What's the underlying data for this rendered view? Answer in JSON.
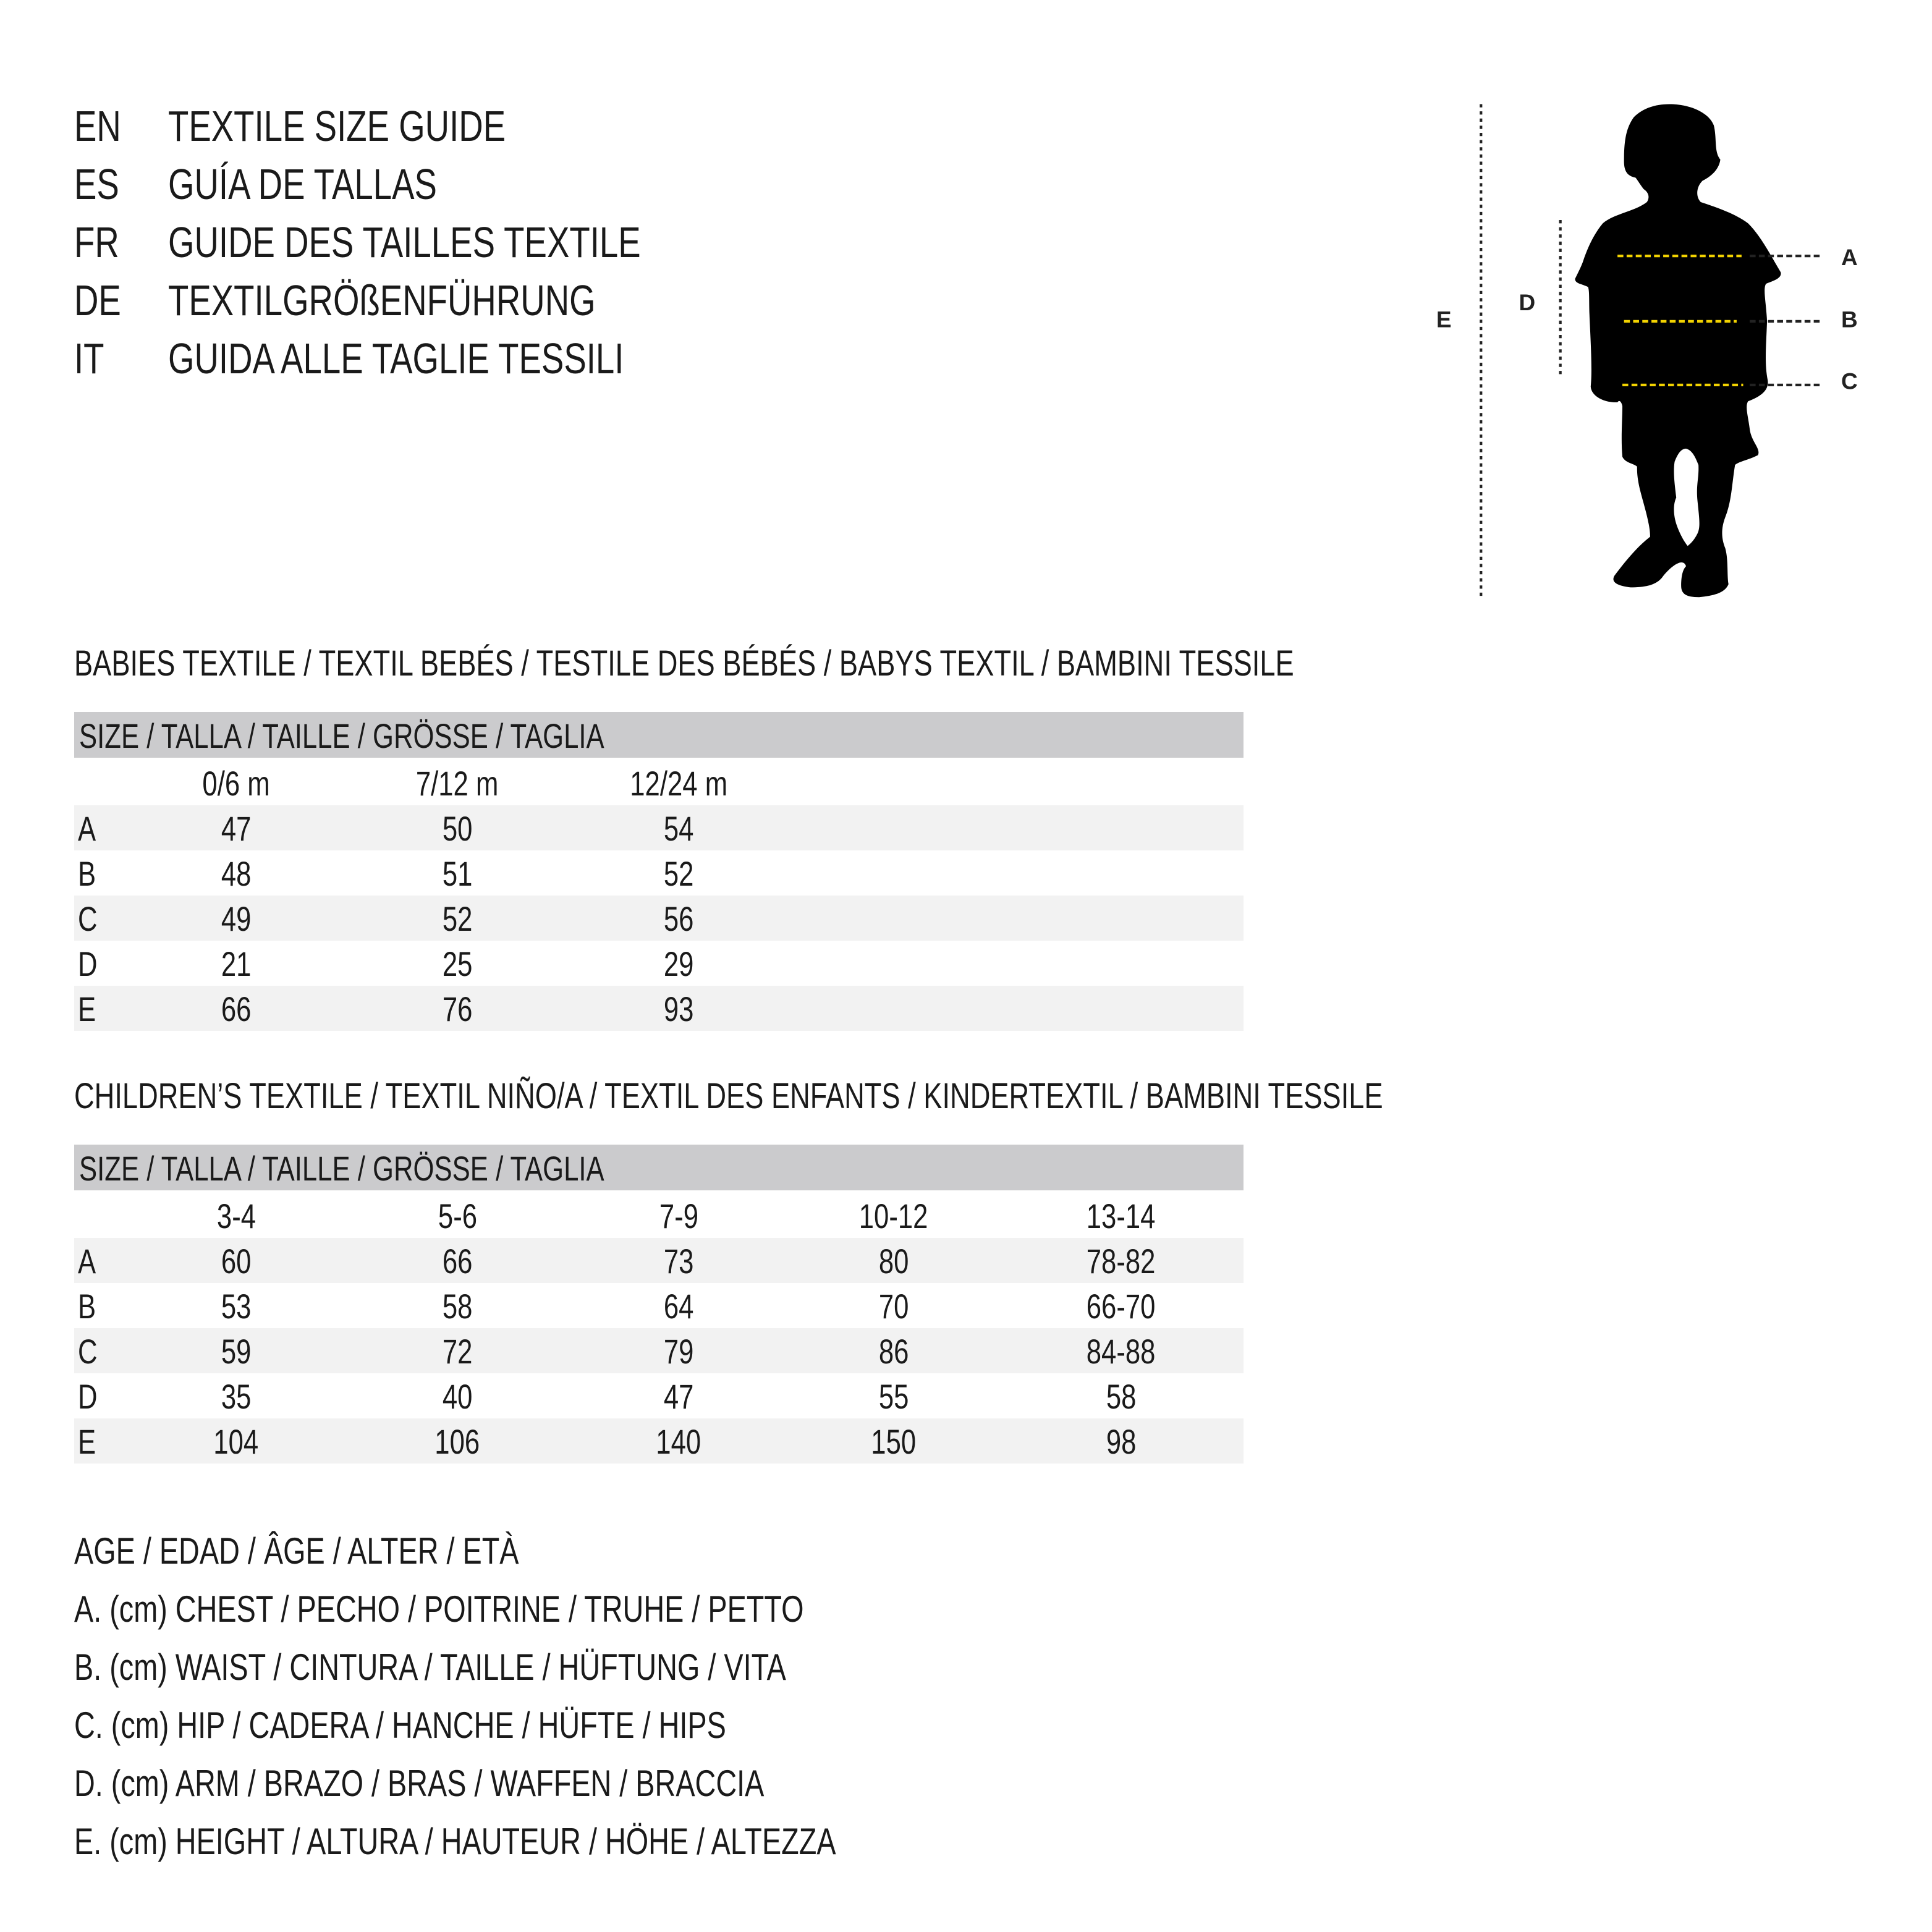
{
  "header": [
    {
      "code": "EN",
      "title": "TEXTILE SIZE GUIDE"
    },
    {
      "code": "ES",
      "title": "GUÍA DE TALLAS"
    },
    {
      "code": "FR",
      "title": "GUIDE DES TAILLES TEXTILE"
    },
    {
      "code": "DE",
      "title": "TEXTILGRÖßENFÜHRUNG"
    },
    {
      "code": "IT",
      "title": "GUIDA ALLE TAGLIE TESSILI"
    }
  ],
  "figure": {
    "labels": {
      "A": "A",
      "B": "B",
      "C": "C",
      "D": "D",
      "E": "E"
    },
    "colors": {
      "silhouette": "#000000",
      "measure_line": "#f2d200",
      "guide_line": "#222222"
    }
  },
  "babies": {
    "title": "BABIES TEXTILE / TEXTIL BEBÉS / TESTILE DES BÉBÉS / BABYS TEXTIL / BAMBINI TESSILE",
    "size_header": "SIZE / TALLA / TAILLE / GRÖSSE / TAGLIA",
    "columns": [
      "0/6 m",
      "7/12 m",
      "12/24 m"
    ],
    "rows": [
      {
        "label": "A",
        "values": [
          "47",
          "50",
          "54"
        ]
      },
      {
        "label": "B",
        "values": [
          "48",
          "51",
          "52"
        ]
      },
      {
        "label": "C",
        "values": [
          "49",
          "52",
          "56"
        ]
      },
      {
        "label": "D",
        "values": [
          "21",
          "25",
          "29"
        ]
      },
      {
        "label": "E",
        "values": [
          "66",
          "76",
          "93"
        ]
      }
    ]
  },
  "children": {
    "title": "CHILDREN’S TEXTILE / TEXTIL NIÑO/A / TEXTIL DES ENFANTS / KINDERTEXTIL / BAMBINI TESSILE",
    "size_header": "SIZE / TALLA / TAILLE / GRÖSSE / TAGLIA",
    "columns": [
      "3-4",
      "5-6",
      "7-9",
      "10-12",
      "13-14"
    ],
    "rows": [
      {
        "label": "A",
        "values": [
          "60",
          "66",
          "73",
          "80",
          "78-82"
        ]
      },
      {
        "label": "B",
        "values": [
          "53",
          "58",
          "64",
          "70",
          "66-70"
        ]
      },
      {
        "label": "C",
        "values": [
          "59",
          "72",
          "79",
          "86",
          "84-88"
        ]
      },
      {
        "label": "D",
        "values": [
          "35",
          "40",
          "47",
          "55",
          "58"
        ]
      },
      {
        "label": "E",
        "values": [
          "104",
          "106",
          "140",
          "150",
          "98"
        ]
      }
    ]
  },
  "legend": [
    "AGE / EDAD / ÂGE / ALTER / ETÀ",
    "A. (cm) CHEST / PECHO / POITRINE / TRUHE / PETTO",
    "B. (cm) WAIST / CINTURA / TAILLE / HÜFTUNG / VITA",
    "C. (cm) HIP / CADERA / HANCHE / HÜFTE / HIPS",
    "D. (cm) ARM / BRAZO / BRAS / WAFFEN / BRACCIA",
    "E. (cm) HEIGHT / ALTURA / HAUTEUR / HÖHE / ALTEZZA"
  ]
}
